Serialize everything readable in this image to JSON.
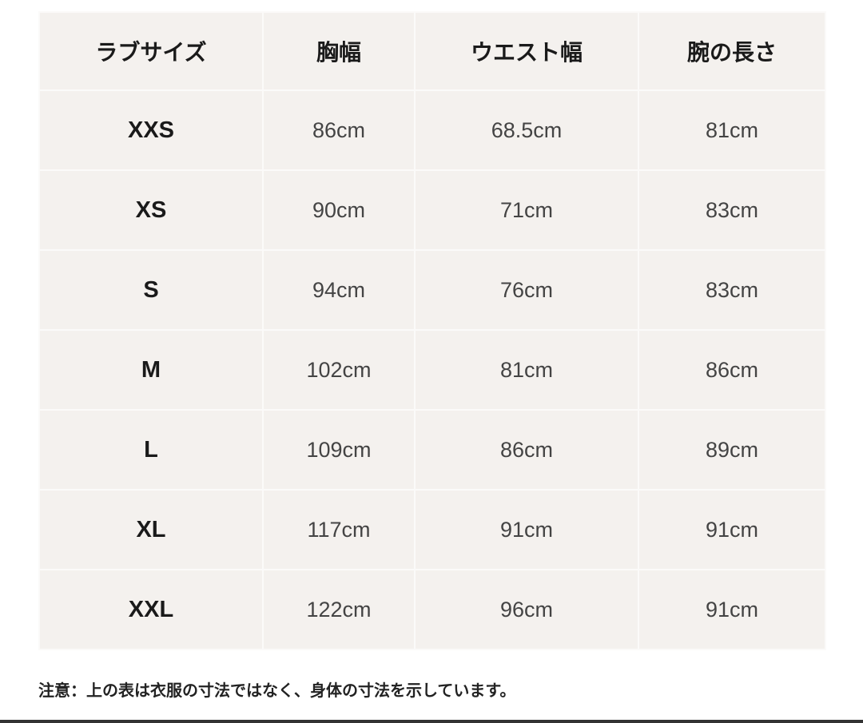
{
  "table": {
    "headers": [
      "ラブサイズ",
      "胸幅",
      "ウエスト幅",
      "腕の長さ"
    ],
    "rows": [
      [
        "XXS",
        "86cm",
        "68.5cm",
        "81cm"
      ],
      [
        "XS",
        "90cm",
        "71cm",
        "83cm"
      ],
      [
        "S",
        "94cm",
        "76cm",
        "83cm"
      ],
      [
        "M",
        "102cm",
        "81cm",
        "86cm"
      ],
      [
        "L",
        "109cm",
        "86cm",
        "89cm"
      ],
      [
        "XL",
        "117cm",
        "91cm",
        "91cm"
      ],
      [
        "XXL",
        "122cm",
        "96cm",
        "91cm"
      ]
    ]
  },
  "note": "注意：上の表は衣服の寸法ではなく、身体の寸法を示しています。"
}
